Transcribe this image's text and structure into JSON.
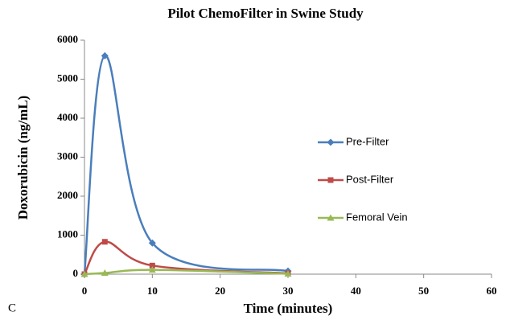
{
  "chart_data": {
    "type": "line",
    "title": "Pilot ChemoFilter in Swine Study",
    "x_label": "Time (minutes)",
    "y_label": "Doxorubicin (ng/mL)",
    "panel_label": "C",
    "x": [
      0,
      3,
      10,
      30
    ],
    "series": [
      {
        "name": "Pre-Filter",
        "color": "#4a7ebb",
        "marker": "diamond",
        "values": [
          0,
          5600,
          800,
          80
        ]
      },
      {
        "name": "Post-Filter",
        "color": "#be4b48",
        "marker": "square",
        "values": [
          0,
          830,
          220,
          20
        ]
      },
      {
        "name": "Femoral Vein",
        "color": "#98b954",
        "marker": "triangle",
        "values": [
          0,
          30,
          110,
          10
        ]
      }
    ],
    "xlim": [
      0,
      60
    ],
    "xticks": [
      0,
      10,
      20,
      30,
      40,
      50,
      60
    ],
    "ylim": [
      0,
      6000
    ],
    "yticks": [
      0,
      1000,
      2000,
      3000,
      4000,
      5000,
      6000
    ],
    "smooth": true,
    "legend": "right"
  }
}
